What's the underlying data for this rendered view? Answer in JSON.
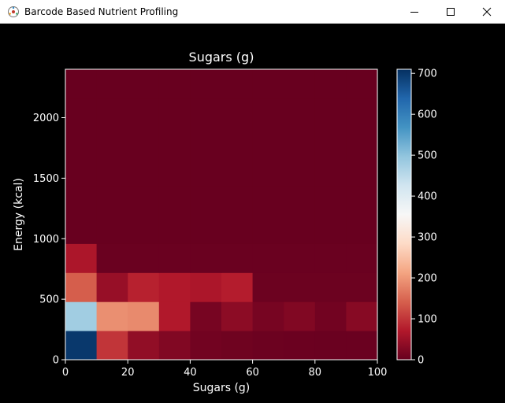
{
  "window": {
    "title": "Barcode Based Nutrient Profiling",
    "buttons": {
      "minimize": "minimize-icon",
      "maximize": "maximize-icon",
      "close": "close-icon"
    },
    "app_icon": "app-icon"
  },
  "colors": {
    "background": "#000000",
    "text": "#ffffff",
    "titlebar": "#ffffff"
  },
  "chart_data": {
    "type": "heatmap",
    "title": "Sugars (g)",
    "xlabel": "Sugars (g)",
    "ylabel": "Energy (kcal)",
    "xlim": [
      0,
      100
    ],
    "ylim": [
      0,
      2400
    ],
    "x_bin_edges": [
      0,
      10,
      20,
      30,
      40,
      50,
      60,
      70,
      80,
      90,
      100
    ],
    "y_bin_edges": [
      0,
      240,
      480,
      720,
      960,
      1200,
      1440,
      1680,
      1920,
      2160,
      2400
    ],
    "x_ticks": [
      0,
      20,
      40,
      60,
      80,
      100
    ],
    "y_ticks": [
      0,
      500,
      1000,
      1500,
      2000
    ],
    "colormap": "RdBu",
    "colorbar": {
      "min": 0,
      "max": 710,
      "ticks": [
        0,
        100,
        200,
        300,
        400,
        500,
        600,
        700
      ]
    },
    "counts": [
      [
        700,
        100,
        40,
        25,
        10,
        8,
        5,
        4,
        3,
        3
      ],
      [
        480,
        190,
        185,
        70,
        15,
        35,
        15,
        25,
        10,
        30
      ],
      [
        140,
        45,
        80,
        70,
        65,
        75,
        5,
        5,
        5,
        5
      ],
      [
        65,
        3,
        3,
        3,
        3,
        3,
        3,
        3,
        3,
        3
      ],
      [
        1,
        1,
        1,
        1,
        1,
        1,
        1,
        1,
        1,
        1
      ],
      [
        1,
        1,
        1,
        1,
        1,
        1,
        1,
        1,
        1,
        1
      ],
      [
        1,
        1,
        1,
        1,
        1,
        1,
        1,
        1,
        1,
        1
      ],
      [
        1,
        1,
        1,
        1,
        1,
        1,
        1,
        1,
        1,
        1
      ],
      [
        1,
        1,
        1,
        1,
        1,
        1,
        1,
        1,
        1,
        1
      ],
      [
        1,
        1,
        1,
        1,
        1,
        1,
        1,
        1,
        1,
        1
      ]
    ],
    "counts_row_order": "bottom-to-top (energy bins ascending)",
    "grid": false,
    "legend": "colorbar-right"
  }
}
